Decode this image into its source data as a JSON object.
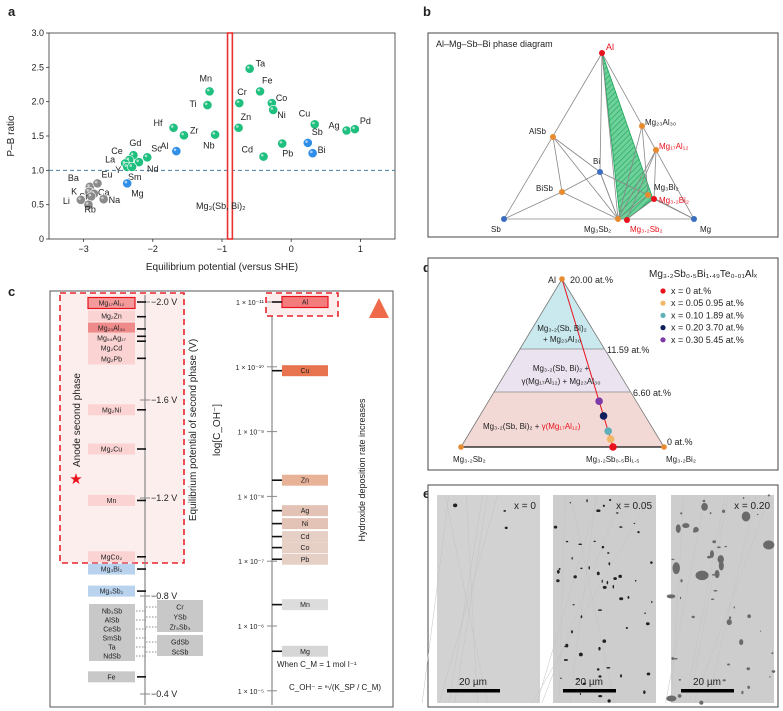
{
  "panel_labels": {
    "a": "a",
    "b": "b",
    "c": "c",
    "d": "d",
    "e": "e"
  },
  "chart_data": {
    "type": "scatter",
    "xlabel": "Equilibrium potential (versus SHE)",
    "ylabel": "P–B ratio",
    "xlim": [
      -3.5,
      1.5
    ],
    "ylim": [
      0,
      3.0
    ],
    "xticks": [
      "−3",
      "−2",
      "−1",
      "0",
      "1"
    ],
    "xtick_values": [
      -3,
      -2,
      -1,
      0,
      1
    ],
    "yticks": [
      "0",
      "0.5",
      "1.0",
      "1.5",
      "2.0",
      "2.5",
      "3.0"
    ],
    "ytick_values": [
      0,
      0.5,
      1.0,
      1.5,
      2.0,
      2.5,
      3.0
    ],
    "reference_line": {
      "y": 1.0,
      "style": "dashed",
      "color": "#4a7fa0"
    },
    "highlight_band": {
      "x": [
        -0.92,
        -0.85
      ],
      "label": "Mg₃(Sb, Bi)₂",
      "color": "#e8322f"
    },
    "colors": {
      "green": "#1fbf7f",
      "blue": "#2f8fe8",
      "gray": "#8a8a8a"
    },
    "points": [
      {
        "label": "Ta",
        "x": -0.6,
        "y": 2.48,
        "group": "green"
      },
      {
        "label": "Mn",
        "x": -1.18,
        "y": 2.15,
        "group": "green"
      },
      {
        "label": "Ti",
        "x": -1.21,
        "y": 1.95,
        "group": "green"
      },
      {
        "label": "Fe",
        "x": -0.45,
        "y": 2.15,
        "group": "green"
      },
      {
        "label": "Cr",
        "x": -0.75,
        "y": 1.98,
        "group": "green"
      },
      {
        "label": "Co",
        "x": -0.28,
        "y": 1.98,
        "group": "green"
      },
      {
        "label": "Ni",
        "x": -0.26,
        "y": 1.88,
        "group": "green"
      },
      {
        "label": "Zn",
        "x": -0.76,
        "y": 1.62,
        "group": "green"
      },
      {
        "label": "Hf",
        "x": -1.7,
        "y": 1.62,
        "group": "green"
      },
      {
        "label": "Zr",
        "x": -1.55,
        "y": 1.51,
        "group": "green"
      },
      {
        "label": "Nb",
        "x": -1.1,
        "y": 1.52,
        "group": "green"
      },
      {
        "label": "Cu",
        "x": 0.34,
        "y": 1.67,
        "group": "green"
      },
      {
        "label": "Ag",
        "x": 0.8,
        "y": 1.58,
        "group": "green"
      },
      {
        "label": "Pd",
        "x": 0.92,
        "y": 1.6,
        "group": "green"
      },
      {
        "label": "Pb",
        "x": -0.13,
        "y": 1.39,
        "group": "green"
      },
      {
        "label": "Cd",
        "x": -0.4,
        "y": 1.2,
        "group": "green"
      },
      {
        "label": "Sb",
        "x": 0.24,
        "y": 1.4,
        "group": "blue"
      },
      {
        "label": "Bi",
        "x": 0.31,
        "y": 1.25,
        "group": "blue"
      },
      {
        "label": "Al",
        "x": -1.66,
        "y": 1.28,
        "group": "blue"
      },
      {
        "label": "Sc",
        "x": -2.08,
        "y": 1.19,
        "group": "green"
      },
      {
        "label": "Gd",
        "x": -2.28,
        "y": 1.22,
        "group": "green"
      },
      {
        "label": "Ce",
        "x": -2.34,
        "y": 1.15,
        "group": "green"
      },
      {
        "label": "La",
        "x": -2.4,
        "y": 1.1,
        "group": "green"
      },
      {
        "label": "Y",
        "x": -2.37,
        "y": 1.05,
        "group": "green"
      },
      {
        "label": "Nd",
        "x": -2.2,
        "y": 1.12,
        "group": "green"
      },
      {
        "label": "Sm",
        "x": -2.3,
        "y": 1.05,
        "group": "green"
      },
      {
        "label": "Mg",
        "x": -2.37,
        "y": 0.81,
        "group": "blue"
      },
      {
        "label": "Ba",
        "x": -2.91,
        "y": 0.76,
        "group": "gray"
      },
      {
        "label": "Eu",
        "x": -2.8,
        "y": 0.81,
        "group": "gray"
      },
      {
        "label": "K",
        "x": -2.92,
        "y": 0.69,
        "group": "gray"
      },
      {
        "label": "Ca",
        "x": -2.85,
        "y": 0.66,
        "group": "gray"
      },
      {
        "label": "Sr",
        "x": -2.89,
        "y": 0.62,
        "group": "gray"
      },
      {
        "label": "Li",
        "x": -3.04,
        "y": 0.57,
        "group": "gray"
      },
      {
        "label": "Rb",
        "x": -2.93,
        "y": 0.5,
        "group": "gray"
      },
      {
        "label": "Na",
        "x": -2.71,
        "y": 0.58,
        "group": "gray"
      }
    ]
  },
  "panel_b": {
    "title": "Al–Mg–Sb–Bi phase diagram",
    "nodes": {
      "Al": "Al",
      "Sb": "Sb",
      "Mg": "Mg",
      "Bi": "Bi",
      "AlSb": "AlSb",
      "BiSb": "BiSb",
      "Mg3Sb2": "Mg₃Sb₂",
      "Mg32Sb2": "Mg₃.₂Sb₂",
      "Mg23Al30": "Mg₂₃Al₃₀",
      "Mg17Al12": "Mg₁₇Al₁₂",
      "Mg3Bi2": "Mg₃Bi₂",
      "Mg32Bi2": "Mg₃.₂Bi₂"
    }
  },
  "panel_c": {
    "left_axis_label": "Equilibrium potential of second phase (V)",
    "anode_label": "Anode second phase",
    "potential_ticks": [
      {
        "label": "−2.0 V",
        "v": -2.0
      },
      {
        "label": "−1.6 V",
        "v": -1.6
      },
      {
        "label": "−1.2 V",
        "v": -1.2
      },
      {
        "label": "−0.8 V",
        "v": -0.8
      },
      {
        "label": "−0.4 V",
        "v": -0.4
      }
    ],
    "phases": [
      {
        "label": "Mg₁₇Al₁₂",
        "v": -2.0,
        "kind": "anode-highlight"
      },
      {
        "label": "Mg₂Zn",
        "v": -1.94,
        "kind": "anode"
      },
      {
        "label": "Mg₂₃Al₃₀",
        "v": -1.89,
        "kind": "anode-strong"
      },
      {
        "label": "Mg₅₄Ag₁₇",
        "v": -1.86,
        "kind": "anode"
      },
      {
        "label": "Mg₂Cd",
        "v": -1.84,
        "kind": "anode"
      },
      {
        "label": "Mg₂Pb",
        "v": -1.77,
        "kind": "anode"
      },
      {
        "label": "Mg₂Ni",
        "v": -1.56,
        "kind": "anode"
      },
      {
        "label": "Mg₂Cu",
        "v": -1.4,
        "kind": "anode"
      },
      {
        "label": "Mn",
        "v": -1.19,
        "kind": "anode"
      },
      {
        "label": "MgCo₂",
        "v": -0.96,
        "kind": "anode"
      },
      {
        "label": "Mg₃Bi₂",
        "v": -0.91,
        "kind": "matrix"
      },
      {
        "label": "Mg₃Sb₂",
        "v": -0.82,
        "kind": "matrix"
      },
      {
        "label": "Fe",
        "v": -0.47,
        "kind": "cathode"
      }
    ],
    "cathode_group_1": [
      "Nb₃Sb",
      "AlSb",
      "CeSb",
      "SmSb",
      "Ta",
      "NdSb"
    ],
    "cathode_group_2": [
      "Cr",
      "YSb",
      "Zr₅Sb₃"
    ],
    "cathode_group_3": [
      "GdSb",
      "ScSb"
    ],
    "right_axis_label": "log[C_OH⁻]",
    "log_ticks": [
      {
        "label": "1 × 10⁻¹¹",
        "log": -11
      },
      {
        "label": "1 × 10⁻¹⁰",
        "log": -10
      },
      {
        "label": "1 × 10⁻⁹",
        "log": -9
      },
      {
        "label": "1 × 10⁻⁸",
        "log": -8
      },
      {
        "label": "1 × 10⁻⁷",
        "log": -7
      },
      {
        "label": "1 × 10⁻⁶",
        "log": -6
      },
      {
        "label": "1 × 10⁻⁵",
        "log": -5
      }
    ],
    "hydroxides": [
      {
        "label": "Al",
        "log": -11.0,
        "color": "#f47c7c"
      },
      {
        "label": "Cu",
        "log": -9.94,
        "color": "#e8744f"
      },
      {
        "label": "Zn",
        "log": -8.25,
        "color": "#e7b298"
      },
      {
        "label": "Ag",
        "log": -7.78,
        "color": "#e3c3b5"
      },
      {
        "label": "Ni",
        "log": -7.58,
        "color": "#e3c3b5"
      },
      {
        "label": "Cd",
        "log": -7.38,
        "color": "#e6d0c6"
      },
      {
        "label": "Co",
        "log": -7.21,
        "color": "#e6d0c6"
      },
      {
        "label": "Pb",
        "log": -7.03,
        "color": "#e6d0c6"
      },
      {
        "label": "Mn",
        "log": -6.33,
        "color": "#dcdcdc"
      },
      {
        "label": "Mg",
        "log": -5.61,
        "color": "#d6d6d6"
      }
    ],
    "arrow_label": "Hydroxide deposition rate increases",
    "condition": "When C_M = 1 mol l⁻¹",
    "formula": "C_OH⁻ = ⁿ√(K_SP / C_M)"
  },
  "panel_d": {
    "title": "Mg₃.₂Sb₀.₅Bi₁.₄₉Te₀.₀₁Alₓ",
    "apex": "Al",
    "apex_value": "20.00 at.%",
    "left": "Mg₃.₂Sb₂",
    "right": "Mg₃.₂Bi₂",
    "composition": "Mg₃.₂Sb₀.₅Bi₁.₅",
    "levels": [
      "11.59 at.%",
      "6.60 at.%",
      "0 at.%"
    ],
    "region_top": [
      "Mg₃.₂(Sb, Bi)₂",
      "+ Mg₂₃Al₃₀"
    ],
    "region_mid": [
      "Mg₃.₂(Sb, Bi)₂ +",
      "γ(Mg₁₇Al₁₂) + Mg₂₃Al₃₀"
    ],
    "region_bottom_a": "Mg₃.₂(Sb, Bi)₂ + ",
    "region_bottom_b": "γ(Mg₁₇Al₁₂)",
    "legend": [
      {
        "label": "x = 0 at.%",
        "at": 0,
        "color": "#e8121c"
      },
      {
        "label": "x = 0.05  0.95 at.%",
        "at": 0.95,
        "color": "#f0b868"
      },
      {
        "label": "x = 0.10  1.89 at.%",
        "at": 1.89,
        "color": "#5fb0b8"
      },
      {
        "label": "x = 0.20  3.70 at.%",
        "at": 3.7,
        "color": "#0e1f5c"
      },
      {
        "label": "x = 0.30  5.45 at.%",
        "at": 5.45,
        "color": "#7b3aa8"
      }
    ]
  },
  "panel_e": {
    "images": [
      {
        "label": "x = 0",
        "scale": "20 µm",
        "density": 0
      },
      {
        "label": "x = 0.05",
        "scale": "20 µm",
        "density": 1
      },
      {
        "label": "x = 0.20",
        "scale": "20 µm",
        "density": 2
      }
    ]
  }
}
